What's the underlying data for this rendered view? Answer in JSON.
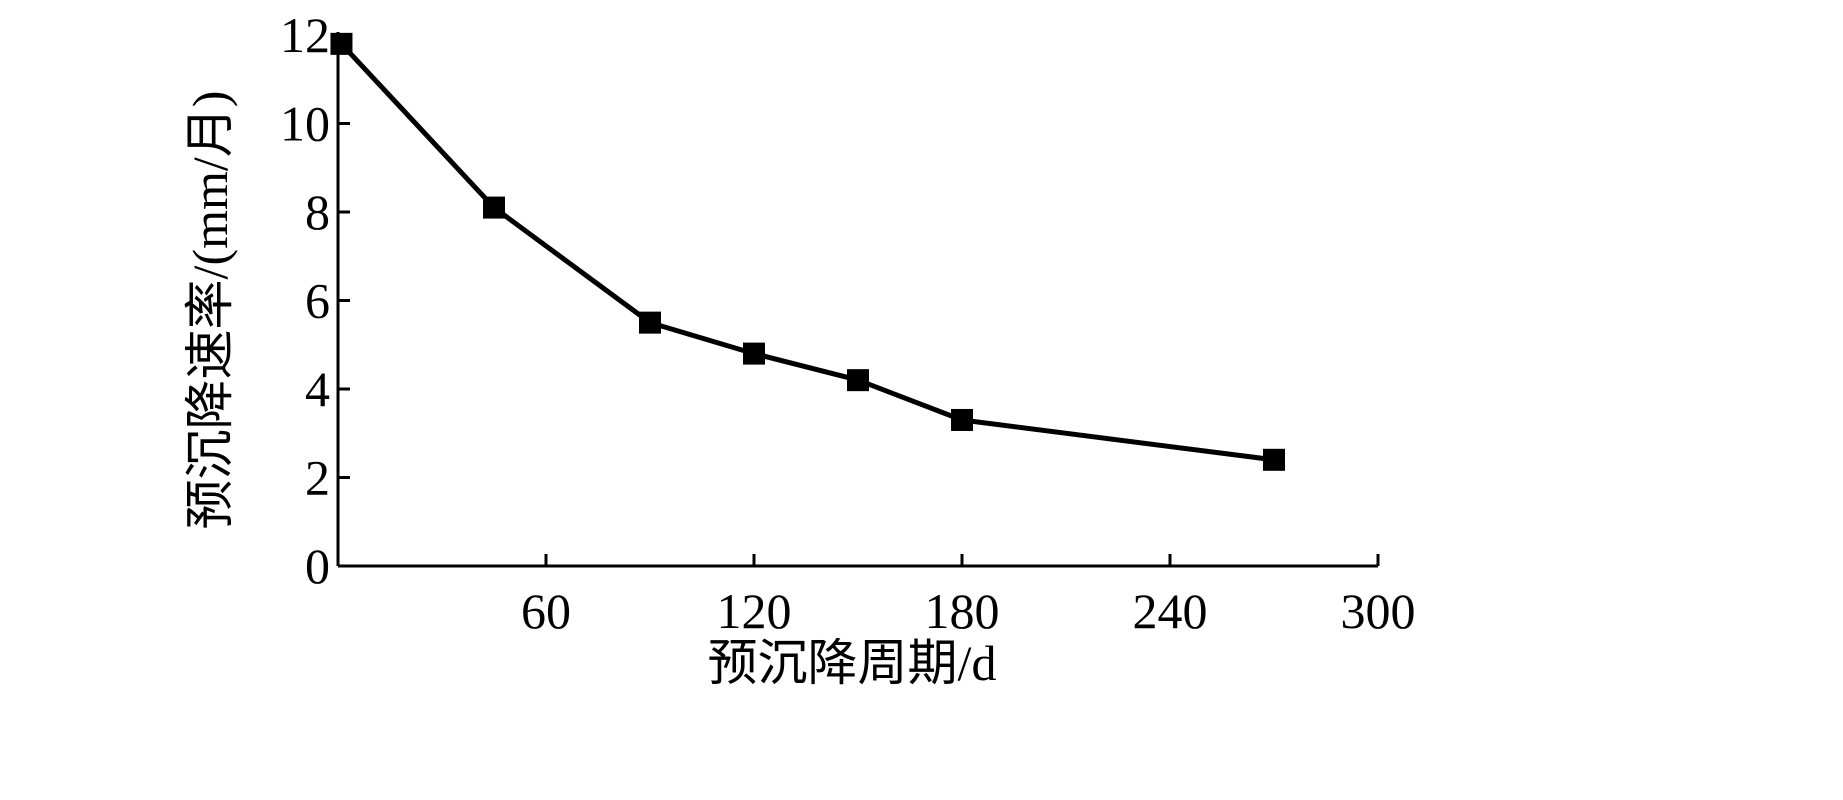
{
  "chart_data": {
    "type": "line",
    "title": "",
    "xlabel": "预沉降周期/d",
    "ylabel": "预沉降速率/(mm/月)",
    "xlim": [
      0,
      300
    ],
    "ylim": [
      0,
      12
    ],
    "x_ticks": [
      60,
      120,
      180,
      240,
      300
    ],
    "y_ticks": [
      0,
      2,
      4,
      6,
      8,
      10,
      12
    ],
    "grid": false,
    "legend": "none",
    "series": [
      {
        "x": [
          1,
          45,
          90,
          120,
          150,
          180,
          270
        ],
        "y": [
          11.8,
          8.1,
          5.5,
          4.8,
          4.2,
          3.3,
          2.4
        ]
      }
    ],
    "colors": {
      "line": "#000000",
      "marker": "#000000",
      "axis": "#000000"
    }
  }
}
